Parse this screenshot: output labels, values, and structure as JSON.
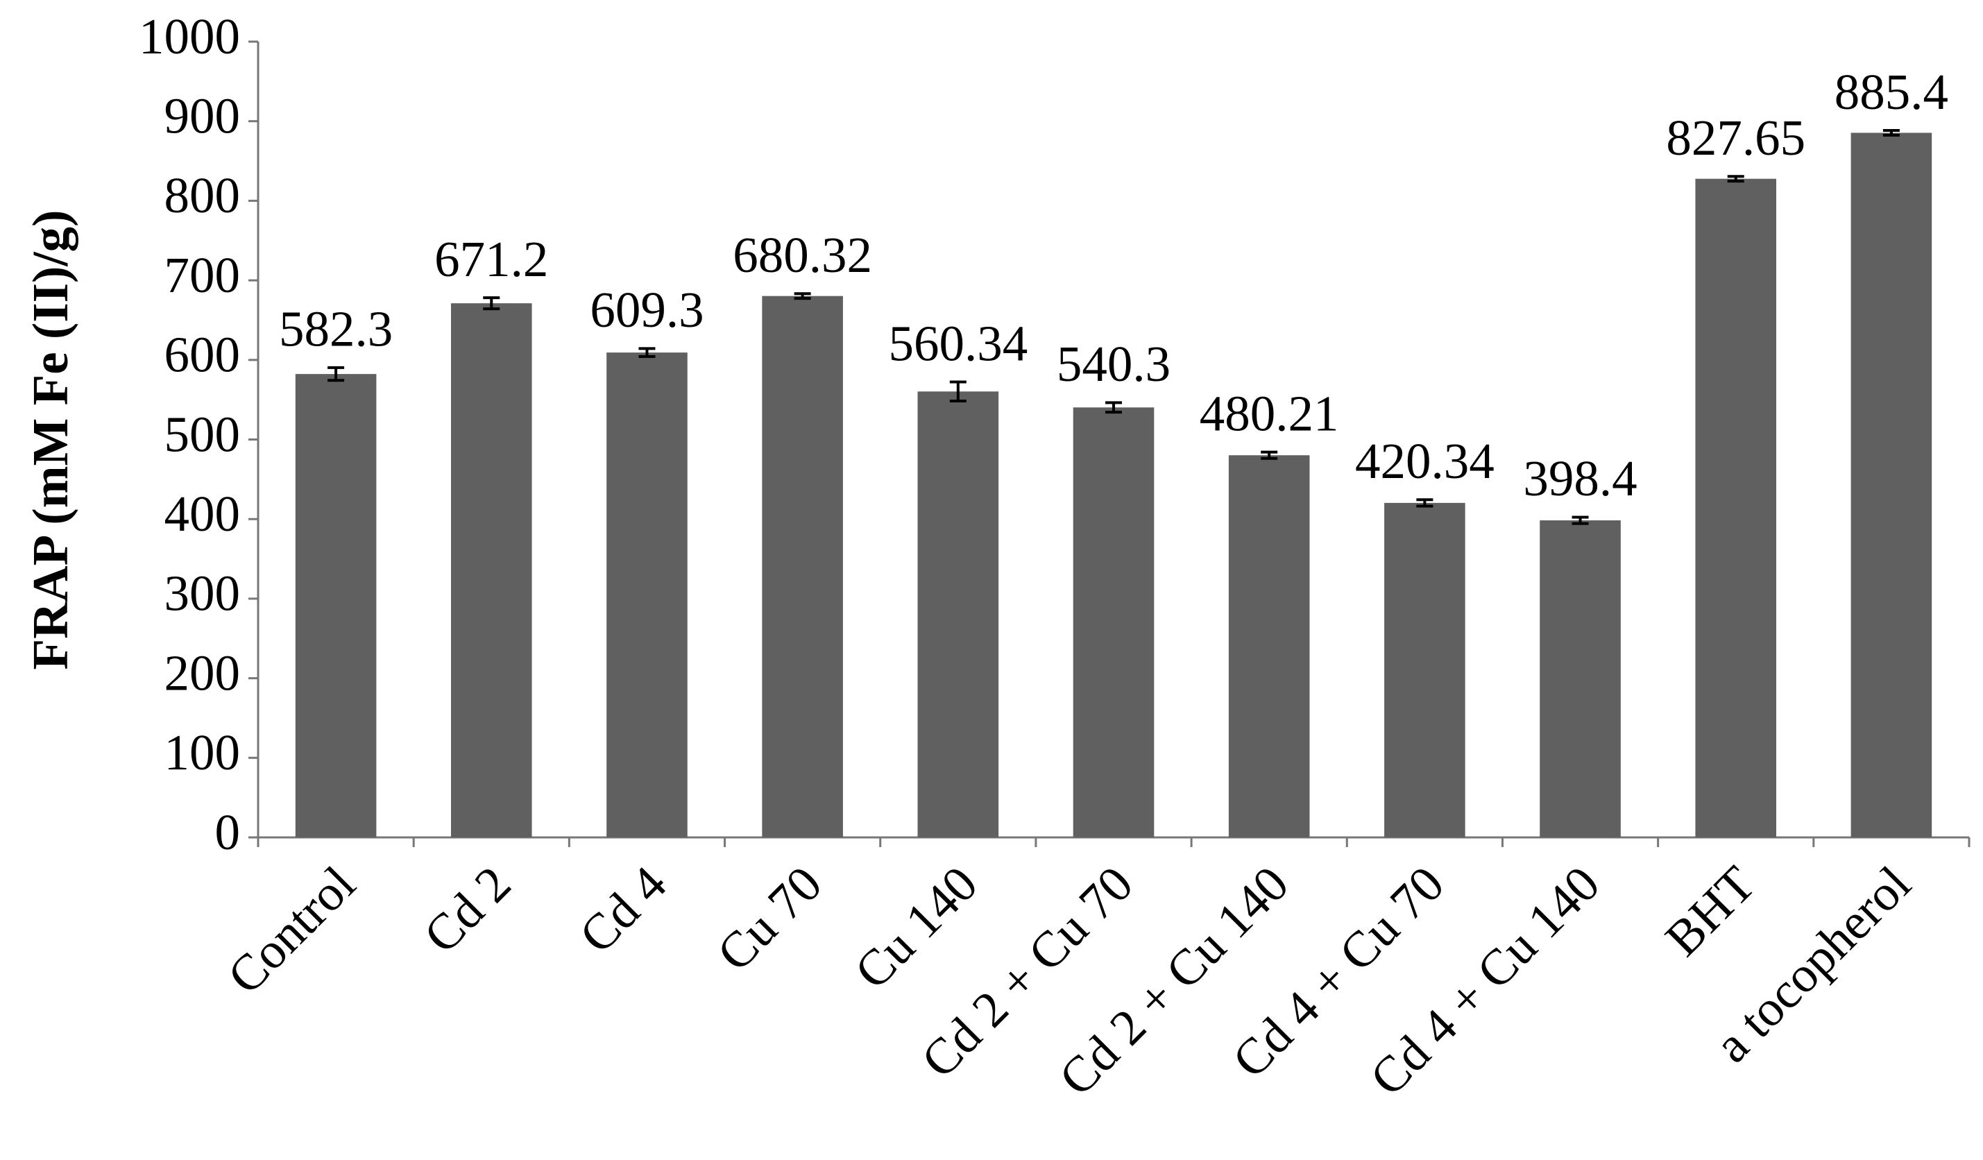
{
  "chart_data": {
    "type": "bar",
    "y_label": "FRAP (mM Fe (II)/g)",
    "categories": [
      "Control",
      "Cd 2",
      "Cd 4",
      "Cu 70",
      "Cu 140",
      "Cd 2 + Cu 70",
      "Cd 2 + Cu 140",
      "Cd 4 + Cu 70",
      "Cd 4 + Cu 140",
      "BHT",
      "a tocopherol"
    ],
    "values": [
      582.3,
      671.2,
      609.3,
      680.32,
      560.34,
      540.3,
      480.21,
      420.34,
      398.4,
      827.65,
      885.4
    ],
    "errors": [
      8,
      7,
      5,
      3,
      12,
      6,
      4,
      4,
      4,
      3,
      3
    ],
    "color": "#606060",
    "ylim": [
      0,
      1000
    ],
    "yticks": [
      0,
      100,
      200,
      300,
      400,
      500,
      600,
      700,
      800,
      900,
      1000
    ],
    "grid": false
  }
}
